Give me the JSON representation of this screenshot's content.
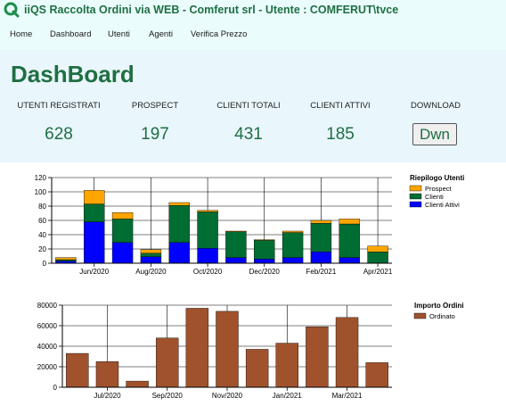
{
  "app": {
    "title": "iiQS Raccolta Ordini via WEB - Comferut srl - Utente : COMFERUT\\tvce"
  },
  "nav": {
    "items": [
      "Home",
      "Dashboard",
      "Utenti",
      "Agenti",
      "Verifica Prezzo"
    ]
  },
  "dashboard": {
    "title": "DashBoard",
    "stats": [
      {
        "label": "UTENTI REGISTRATI",
        "value": "628"
      },
      {
        "label": "PROSPECT",
        "value": "197"
      },
      {
        "label": "CLIENTI TOTALI",
        "value": "431"
      },
      {
        "label": "CLIENTI ATTIVI",
        "value": "185"
      }
    ],
    "download": {
      "label": "DOWNLOAD",
      "button": "Dwn"
    }
  },
  "colors": {
    "brand": "#1f6f43",
    "prospect": "#ffa500",
    "clienti": "#006d32",
    "clienti_attivi": "#0000ff",
    "ordinato": "#a0522d"
  },
  "chart_data": [
    {
      "type": "bar",
      "stacked": true,
      "title": "Riepilogo Utenti",
      "categories": [
        "May/2020",
        "Jun/2020",
        "Jul/2020",
        "Aug/2020",
        "Sep/2020",
        "Oct/2020",
        "Nov/2020",
        "Dec/2020",
        "Jan/2021",
        "Feb/2021",
        "Mar/2021",
        "Apr/2021"
      ],
      "tick_labels": [
        "Jun/2020",
        "Aug/2020",
        "Oct/2020",
        "Dec/2020",
        "Feb/2021",
        "Apr/2021"
      ],
      "series": [
        {
          "name": "Clienti Attivi",
          "values": [
            3,
            58,
            29,
            9,
            29,
            21,
            8,
            6,
            8,
            16,
            8,
            0
          ],
          "color": "#0000ff"
        },
        {
          "name": "Clienti",
          "values": [
            2,
            25,
            33,
            5,
            52,
            51,
            36,
            26,
            35,
            40,
            47,
            16
          ],
          "color": "#006d32"
        },
        {
          "name": "Prospect",
          "values": [
            3,
            19,
            9,
            5,
            4,
            2,
            1,
            1,
            2,
            4,
            7,
            8
          ],
          "color": "#ffa500"
        }
      ],
      "legend_order": [
        "Prospect",
        "Clienti",
        "Clienti Attivi"
      ],
      "legend": "right",
      "ylim": [
        0,
        120
      ],
      "yticks": [
        0,
        20,
        40,
        60,
        80,
        100,
        120
      ],
      "grid": true
    },
    {
      "type": "bar",
      "title": "Importo Ordini",
      "categories": [
        "Jun/2020",
        "Jul/2020",
        "Aug/2020",
        "Sep/2020",
        "Oct/2020",
        "Nov/2020",
        "Dec/2020",
        "Jan/2021",
        "Feb/2021",
        "Mar/2021",
        "Apr/2021"
      ],
      "tick_labels": [
        "Jul/2020",
        "Sep/2020",
        "Nov/2020",
        "Jan/2021",
        "Mar/2021"
      ],
      "series": [
        {
          "name": "Ordinato",
          "values": [
            33000,
            25000,
            6000,
            48000,
            77000,
            74000,
            37000,
            43000,
            59000,
            68000,
            24000
          ],
          "color": "#a0522d"
        }
      ],
      "legend": "right",
      "ylim": [
        0,
        80000
      ],
      "yticks": [
        0,
        20000,
        40000,
        60000,
        80000
      ],
      "grid": true
    }
  ]
}
